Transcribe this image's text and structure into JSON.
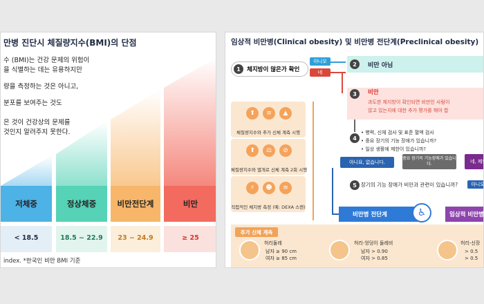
{
  "left": {
    "title": " 만병 진단시 체질량지수(BMI)의 단점",
    "lines": [
      "수 (BMI)는 건강 문제의 위험이",
      "을 식별하는 데는 유용하지만",
      "량을 측정하는 것은 아니고,",
      "분포를 보여주는 것도",
      "은 것이 건강상의 문제를",
      "것인지 알려주지 못한다."
    ],
    "categories": [
      {
        "label": "저체중",
        "range": "< 18.5",
        "color": "#4db2e5",
        "vcolor": "#1f2a44"
      },
      {
        "label": "정상체중",
        "range": "18.5 ~ 22.9",
        "color": "#56d2b6",
        "vcolor": "#1f7a5a"
      },
      {
        "label": "비만전단계",
        "range": "23 ~ 24.9",
        "color": "#f7b66a",
        "vcolor": "#c47a1f"
      },
      {
        "label": "비만",
        "range": "≥ 25",
        "color": "#f26b5e",
        "vcolor": "#d9342b"
      }
    ],
    "footnote": "index. *한국인 비만 BMI 기준"
  },
  "right": {
    "title": "임상적 비만병(Clinical obesity) 및 비만병 전단계(Preclinical obesity)",
    "step1": "체지방이 많은가 확인",
    "no_label": "아니오",
    "yes_label": "네",
    "step2": "비만 아님",
    "step3_title": "비만",
    "step3_line1": "과도한 체지방이 확인되면 비만인 사람이",
    "step3_line2": "않고 있는지에 대한 추가 평가를 해야 합",
    "step4_lines": [
      "• 병력, 신체 검사 및 표준 혈액 검사",
      "• 중요 장기의 기능 장애가 있습니까?",
      "• 일상 생활에 제한이 있습니까?"
    ],
    "answer_no_both": "아니요, 없습니다.",
    "answer_organ": "중요 장기의 기능장애가 있습니다.",
    "answer_yes": "네, 제한",
    "step5": "장기의 기능 장애가 비만과 관련이 있습니까?",
    "step5_no": "아니오",
    "result_pre": "비만병 전단계",
    "result_clinical": "임상적 비만병",
    "side_cards": [
      "체질량지수와 추가 신체 계측 시행",
      "체질량지수와 별개로 신체 계측 2회 시행",
      "직접적인 체지방 측정 (예: DEXA 스캔)"
    ],
    "extra_title": "추가 신체 계측",
    "measures": [
      {
        "name": "허리둘레",
        "l1": "남자 ≥ 90 cm",
        "l2": "여자 ≥ 85 cm"
      },
      {
        "name": "허리-엉덩이 둘레비",
        "l1": "남자 > 0.90",
        "l2": "여자 > 0.85"
      },
      {
        "name": "허리-신장",
        "l1": "> 0.5",
        "l2": "> 0.5"
      }
    ],
    "nums": [
      "1",
      "2",
      "3",
      "4",
      "5"
    ]
  }
}
